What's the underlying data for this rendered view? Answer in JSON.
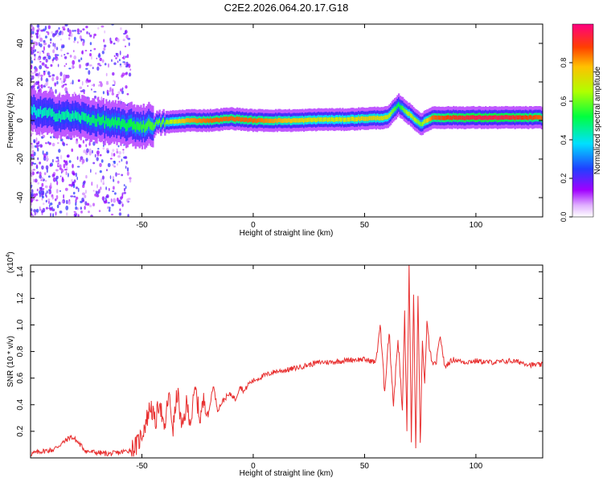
{
  "figure_title": "C2E2.2026.064.20.17.G18",
  "colors": {
    "snr_line": "#e83030",
    "axis": "#000000",
    "background": "#ffffff"
  },
  "chart_data": [
    {
      "type": "heatmap",
      "title": "C2E2.2026.064.20.17.G18",
      "xlabel": "Height of straight line (km)",
      "ylabel": "Frequency (Hz)",
      "xlim": [
        -100,
        130
      ],
      "ylim": [
        -50,
        50
      ],
      "x_ticks": [
        -50,
        0,
        50,
        100
      ],
      "y_ticks": [
        -40,
        -20,
        0,
        20,
        40
      ],
      "grid": false,
      "colorbar": {
        "label": "Normalized spectral amplitude",
        "range": [
          0,
          1
        ],
        "ticks": [
          0.0,
          0.2,
          0.4,
          0.6,
          0.8
        ],
        "tick_labels": [
          "0.0",
          "0.2",
          "0.4",
          "0.6",
          "0.8"
        ],
        "colormap": "rainbow (white-magenta-blue-cyan-green-yellow-red)"
      },
      "ridge": {
        "description": "dominant spectral line frequency vs height",
        "x": [
          -100,
          -90,
          -80,
          -70,
          -60,
          -50,
          -40,
          -30,
          -20,
          -10,
          0,
          10,
          20,
          30,
          40,
          50,
          60,
          65,
          70,
          75,
          80,
          90,
          100,
          110,
          120,
          130
        ],
        "y": [
          5,
          3,
          2,
          0,
          -2,
          -3,
          -1,
          0,
          0,
          1,
          0,
          0,
          0,
          0.5,
          0.5,
          1,
          1.5,
          8,
          3,
          -2,
          1.5,
          1.5,
          1.5,
          1.5,
          1.5,
          1.5
        ],
        "amplitude": [
          0.4,
          0.45,
          0.45,
          0.5,
          0.5,
          0.55,
          0.6,
          0.8,
          0.85,
          0.85,
          0.85,
          0.8,
          0.75,
          0.7,
          0.7,
          0.75,
          0.7,
          0.5,
          0.7,
          0.6,
          0.85,
          0.9,
          0.95,
          0.95,
          0.9,
          0.85
        ]
      }
    },
    {
      "type": "line",
      "xlabel": "Height of straight line (km)",
      "ylabel": "SNR (10 * v/v)",
      "y_scale_label": "(x10",
      "y_scale_exp": "4",
      "y_scale_close": ")",
      "xlim": [
        -100,
        130
      ],
      "ylim": [
        0,
        1.45
      ],
      "x_ticks": [
        -50,
        0,
        50,
        100
      ],
      "y_ticks": [
        0.2,
        0.4,
        0.6,
        0.8,
        1.0,
        1.2,
        1.4
      ],
      "y_tick_labels": [
        "0.2",
        "0.4",
        "0.6",
        "0.8",
        "1.0",
        "1.2",
        "1.4"
      ],
      "grid": false,
      "series": [
        {
          "x": [
            -100,
            -95,
            -90,
            -85,
            -82,
            -80,
            -75,
            -70,
            -65,
            -60,
            -55,
            -52,
            -50,
            -48,
            -46,
            -44,
            -42,
            -40,
            -38,
            -36,
            -34,
            -32,
            -30,
            -28,
            -26,
            -24,
            -22,
            -20,
            -18,
            -16,
            -14,
            -12,
            -10,
            -8,
            -6,
            -4,
            -2,
            0,
            5,
            10,
            15,
            20,
            25,
            30,
            35,
            40,
            45,
            50,
            55,
            57,
            59,
            61,
            63,
            65,
            67,
            68,
            69,
            70,
            71,
            72,
            73,
            74,
            75,
            76,
            77,
            78,
            80,
            82,
            84,
            86,
            88,
            90,
            95,
            100,
            105,
            110,
            115,
            120,
            125,
            130
          ],
          "y": [
            0.03,
            0.05,
            0.06,
            0.12,
            0.16,
            0.14,
            0.05,
            0.04,
            0.03,
            0.04,
            0.06,
            0.1,
            0.18,
            0.28,
            0.4,
            0.25,
            0.45,
            0.18,
            0.48,
            0.22,
            0.5,
            0.2,
            0.4,
            0.28,
            0.52,
            0.3,
            0.44,
            0.33,
            0.55,
            0.36,
            0.42,
            0.46,
            0.48,
            0.44,
            0.54,
            0.5,
            0.56,
            0.58,
            0.62,
            0.65,
            0.66,
            0.68,
            0.7,
            0.72,
            0.72,
            0.73,
            0.74,
            0.74,
            0.72,
            1.0,
            0.5,
            0.95,
            0.4,
            0.9,
            0.35,
            1.1,
            0.2,
            1.45,
            0.1,
            1.25,
            0.05,
            1.2,
            0.08,
            0.9,
            0.55,
            1.0,
            0.72,
            0.7,
            0.92,
            0.68,
            0.72,
            0.74,
            0.72,
            0.73,
            0.72,
            0.72,
            0.73,
            0.72,
            0.7,
            0.7
          ]
        }
      ]
    }
  ]
}
